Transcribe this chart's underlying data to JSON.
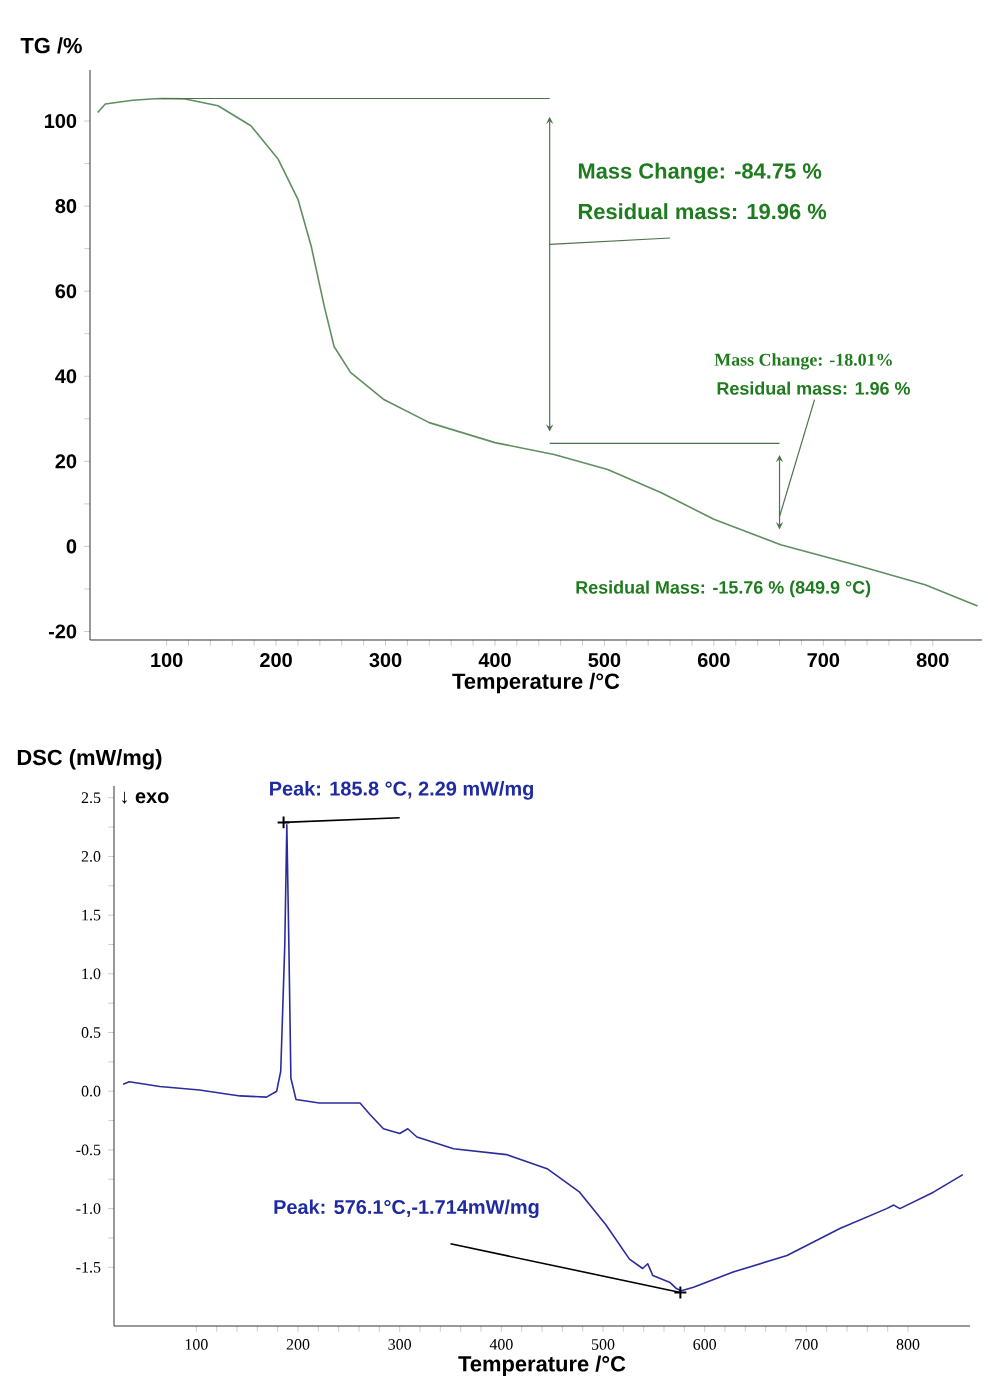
{
  "chart_data": [
    {
      "type": "line",
      "ylabel": "TG /%",
      "xlabel": "Temperature /°C",
      "series": [
        {
          "color": "#5f8f5f",
          "x": [
            37,
            44,
            69,
            93,
            117,
            147,
            177,
            202,
            220,
            232,
            244,
            253,
            268,
            298,
            340,
            400,
            454,
            503,
            552,
            600,
            661,
            733,
            793,
            841
          ],
          "values": [
            102,
            104,
            104.9,
            105.3,
            105.2,
            103.6,
            98.9,
            91,
            81.6,
            70.7,
            56.5,
            47,
            40.9,
            34.6,
            29.1,
            24.4,
            21.6,
            18.1,
            12.6,
            6.4,
            0.4,
            -4.6,
            -9,
            -14
          ]
        },
        {
          "color": "#4c724c",
          "x": [
            95,
            450
          ],
          "values": [
            105.3,
            105.3
          ]
        },
        {
          "color": "#4c724c",
          "x": [
            450,
            660
          ],
          "values": [
            24.2,
            24.2
          ]
        }
      ],
      "xlim": [
        30,
        845
      ],
      "ylim": [
        -22,
        112
      ],
      "xticks": [
        100,
        200,
        300,
        400,
        500,
        600,
        700,
        800
      ],
      "yticks": [
        -20,
        0,
        20,
        40,
        60,
        80,
        100
      ],
      "annotations": [
        "Mass Change:    -84.75 %",
        "Residual mass:   19.96 %",
        "Mass Change: -18.01%",
        "Residual mass: 1.96 %",
        "Residual Mass: -15.76 % (849.9 °C)"
      ]
    },
    {
      "type": "line",
      "ylabel": "DSC (mW/mg)",
      "xlabel": "Temperature /°C",
      "color": "#2b2b9c",
      "x": [
        28,
        34,
        64,
        103,
        143,
        169,
        179,
        183,
        187,
        189,
        191,
        193,
        198,
        221,
        261,
        271,
        284,
        300,
        308,
        317,
        353,
        405,
        445,
        477,
        503,
        526,
        539,
        544,
        549,
        566,
        572,
        577,
        589,
        628,
        681,
        733,
        779,
        786,
        792,
        825,
        854
      ],
      "values": [
        0.06,
        0.08,
        0.04,
        0.01,
        -0.04,
        -0.05,
        0.0,
        0.17,
        1.25,
        2.27,
        1.25,
        0.11,
        -0.07,
        -0.1,
        -0.1,
        -0.2,
        -0.32,
        -0.36,
        -0.32,
        -0.39,
        -0.49,
        -0.54,
        -0.66,
        -0.86,
        -1.14,
        -1.43,
        -1.51,
        -1.47,
        -1.57,
        -1.63,
        -1.68,
        -1.7,
        -1.67,
        -1.54,
        -1.4,
        -1.17,
        -1.0,
        -0.97,
        -1.0,
        -0.86,
        -0.71
      ],
      "xlim": [
        19,
        861
      ],
      "ylim": [
        -2.0,
        2.6
      ],
      "xticks": [
        100,
        200,
        300,
        400,
        500,
        600,
        700,
        800
      ],
      "yticks": [
        {
          "value": 2.5,
          "label": "2.5"
        },
        {
          "value": 2.0,
          "label": "2.0"
        },
        {
          "value": 1.5,
          "label": "1.5"
        },
        {
          "value": 1.0,
          "label": "1.0"
        },
        {
          "value": 0.5,
          "label": "0.5"
        },
        {
          "value": 0.0,
          "label": "0.0"
        },
        {
          "value": -0.5,
          "label": "-0.5"
        },
        {
          "value": -1.0,
          "label": "-1.0"
        },
        {
          "value": -1.5,
          "label": "-1.5"
        }
      ],
      "annotations": [
        "↓ exo",
        {
          "text": "Peak: 185.8 °C, 2.29 mW/mg",
          "x": 185.8,
          "y": 2.29
        },
        {
          "text": "Peak: 576.1°C,-1.714mW/mg",
          "x": 576.1,
          "y": -1.714
        }
      ]
    }
  ]
}
